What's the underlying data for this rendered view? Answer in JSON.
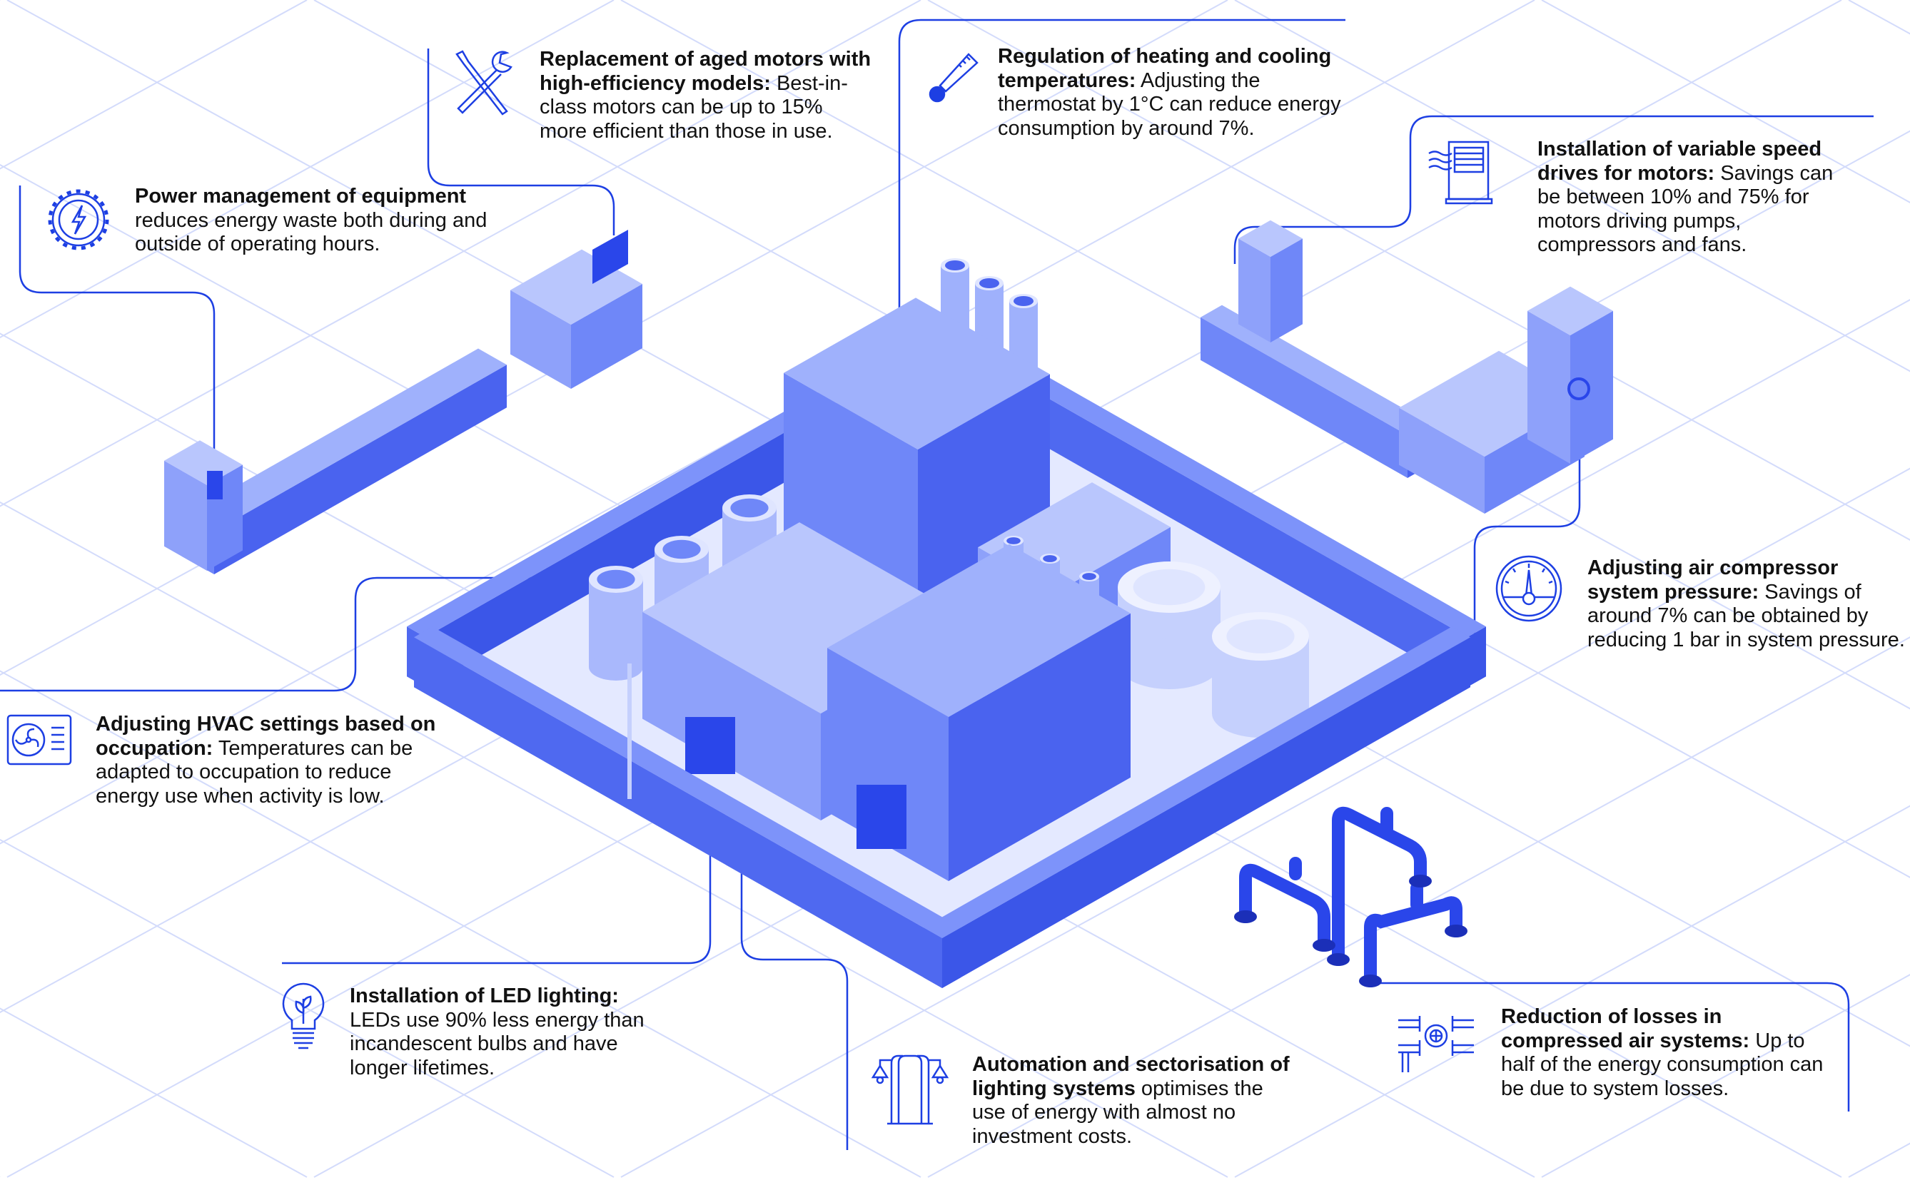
{
  "colors": {
    "accent": "#1d3fe3",
    "grid": "#d3dbfb",
    "building_light": "#9fb1fc",
    "building_mid": "#6f87f8",
    "building_dark": "#4a63ef",
    "pipe": "#2a46ea",
    "ground": "#eef1ff"
  },
  "callouts": [
    {
      "icon": "gear-lightning-icon",
      "title": "Power management of equipment",
      "body": " reduces energy waste both during and outside of operating hours."
    },
    {
      "icon": "wrench-screwdriver-icon",
      "title": "Replacement of aged motors with high-efficiency models:",
      "body": " Best-in-class motors can be up to 15% more efficient than those in use."
    },
    {
      "icon": "thermometer-icon",
      "title": "Regulation of heating and cooling temperatures:",
      "body": " Adjusting the thermostat by 1°C can reduce energy consumption by around 7%."
    },
    {
      "icon": "variable-speed-drive-icon",
      "title": "Installation of variable speed drives for motors:",
      "body": " Savings can be between 10% and 75% for motors driving pumps, compressors and fans."
    },
    {
      "icon": "pressure-gauge-icon",
      "title": "Adjusting air compressor system pressure:",
      "body": " Savings of around 7% can be obtained by reducing 1 bar in system pressure."
    },
    {
      "icon": "hvac-fan-icon",
      "title": "Adjusting HVAC settings based on occupation:",
      "body": " Temperatures can be adapted to occupation to reduce energy use when activity is low."
    },
    {
      "icon": "led-bulb-icon",
      "title": "Installation of LED lighting:",
      "body": " LEDs use 90% less energy than incandescent bulbs and have longer lifetimes."
    },
    {
      "icon": "street-lamp-icon",
      "title": "Automation and sectorisation of lighting systems",
      "body": " optimises the use of energy with almost no investment costs."
    },
    {
      "icon": "compressed-air-pipe-icon",
      "title": "Reduction of losses in compressed air systems:",
      "body": " Up to half of the energy consumption can be due to system losses."
    }
  ]
}
